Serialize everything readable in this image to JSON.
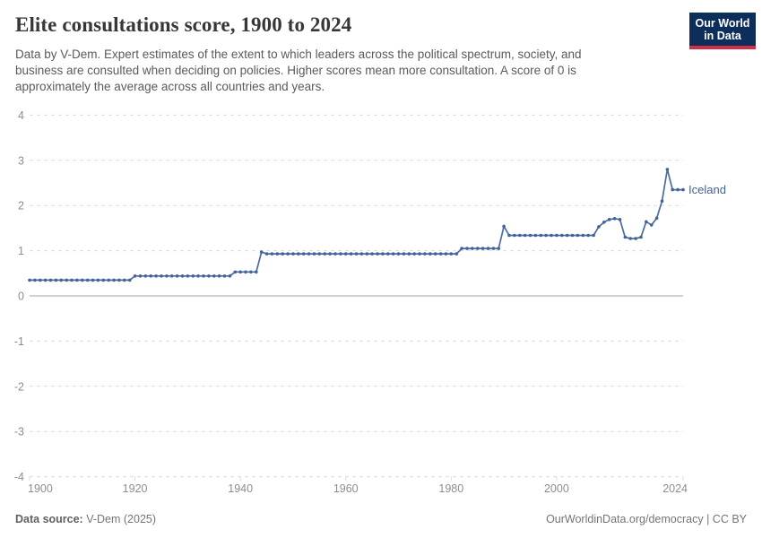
{
  "header": {
    "title": "Elite consultations score, 1900 to 2024",
    "subtitle_lines": [
      "Data by V-Dem. Expert estimates of the extent to which leaders across the political spectrum, society, and",
      "business are consulted when deciding on policies. Higher scores mean more consultation. A score of 0 is",
      "approximately the average across all countries and years."
    ],
    "logo": {
      "line1": "Our World",
      "line2": "in Data"
    }
  },
  "footer": {
    "source_label": "Data source:",
    "source_value": " V-Dem (2025)",
    "right_text": "OurWorldinData.org/democracy | CC BY"
  },
  "colors": {
    "series_line": "#4d6b9f",
    "series_dot": "#44629a",
    "entity_label": "#44629a",
    "grid_dashed": "#dcdcdc",
    "grid_zero": "#a3a3a3",
    "axis_text": "#8d8d8d",
    "logo_bg": "#0d2e5a",
    "logo_red": "#d22e44"
  },
  "chart_data": {
    "type": "line",
    "title": "Elite consultations score, 1900 to 2024",
    "xlabel": "",
    "ylabel": "",
    "xlim": [
      1900,
      2024
    ],
    "ylim": [
      -4,
      4
    ],
    "x_ticks": [
      1900,
      1920,
      1940,
      1960,
      1980,
      2000,
      2024
    ],
    "y_ticks": [
      -4,
      -3,
      -2,
      -1,
      0,
      1,
      2,
      3,
      4
    ],
    "grid": "horizontal-dashed, zero-line-solid",
    "legend_position": "end-of-line-label",
    "series": [
      {
        "name": "Iceland",
        "x": [
          1900,
          1901,
          1902,
          1903,
          1904,
          1905,
          1906,
          1907,
          1908,
          1909,
          1910,
          1911,
          1912,
          1913,
          1914,
          1915,
          1916,
          1917,
          1918,
          1919,
          1920,
          1921,
          1922,
          1923,
          1924,
          1925,
          1926,
          1927,
          1928,
          1929,
          1930,
          1931,
          1932,
          1933,
          1934,
          1935,
          1936,
          1937,
          1938,
          1939,
          1940,
          1941,
          1942,
          1943,
          1944,
          1945,
          1946,
          1947,
          1948,
          1949,
          1950,
          1951,
          1952,
          1953,
          1954,
          1955,
          1956,
          1957,
          1958,
          1959,
          1960,
          1961,
          1962,
          1963,
          1964,
          1965,
          1966,
          1967,
          1968,
          1969,
          1970,
          1971,
          1972,
          1973,
          1974,
          1975,
          1976,
          1977,
          1978,
          1979,
          1980,
          1981,
          1982,
          1983,
          1984,
          1985,
          1986,
          1987,
          1988,
          1989,
          1990,
          1991,
          1992,
          1993,
          1994,
          1995,
          1996,
          1997,
          1998,
          1999,
          2000,
          2001,
          2002,
          2003,
          2004,
          2005,
          2006,
          2007,
          2008,
          2009,
          2010,
          2011,
          2012,
          2013,
          2014,
          2015,
          2016,
          2017,
          2018,
          2019,
          2020,
          2021,
          2022,
          2023,
          2024
        ],
        "values": [
          0.35,
          0.35,
          0.35,
          0.35,
          0.35,
          0.35,
          0.35,
          0.35,
          0.35,
          0.35,
          0.35,
          0.35,
          0.35,
          0.35,
          0.35,
          0.35,
          0.35,
          0.35,
          0.35,
          0.35,
          0.44,
          0.44,
          0.44,
          0.44,
          0.44,
          0.44,
          0.44,
          0.44,
          0.44,
          0.44,
          0.44,
          0.44,
          0.44,
          0.44,
          0.44,
          0.44,
          0.44,
          0.44,
          0.44,
          0.53,
          0.53,
          0.53,
          0.53,
          0.53,
          0.97,
          0.93,
          0.93,
          0.93,
          0.93,
          0.93,
          0.93,
          0.93,
          0.93,
          0.93,
          0.93,
          0.93,
          0.93,
          0.93,
          0.93,
          0.93,
          0.93,
          0.93,
          0.93,
          0.93,
          0.93,
          0.93,
          0.93,
          0.93,
          0.93,
          0.93,
          0.93,
          0.93,
          0.93,
          0.93,
          0.93,
          0.93,
          0.93,
          0.93,
          0.93,
          0.93,
          0.93,
          0.93,
          1.05,
          1.05,
          1.05,
          1.05,
          1.05,
          1.05,
          1.05,
          1.05,
          1.54,
          1.34,
          1.34,
          1.34,
          1.34,
          1.34,
          1.34,
          1.34,
          1.34,
          1.34,
          1.34,
          1.34,
          1.34,
          1.34,
          1.34,
          1.34,
          1.34,
          1.34,
          1.53,
          1.63,
          1.69,
          1.71,
          1.69,
          1.3,
          1.27,
          1.27,
          1.3,
          1.64,
          1.57,
          1.72,
          2.1,
          2.8,
          2.35,
          2.35,
          2.35
        ]
      }
    ],
    "entity_label": "Iceland"
  }
}
